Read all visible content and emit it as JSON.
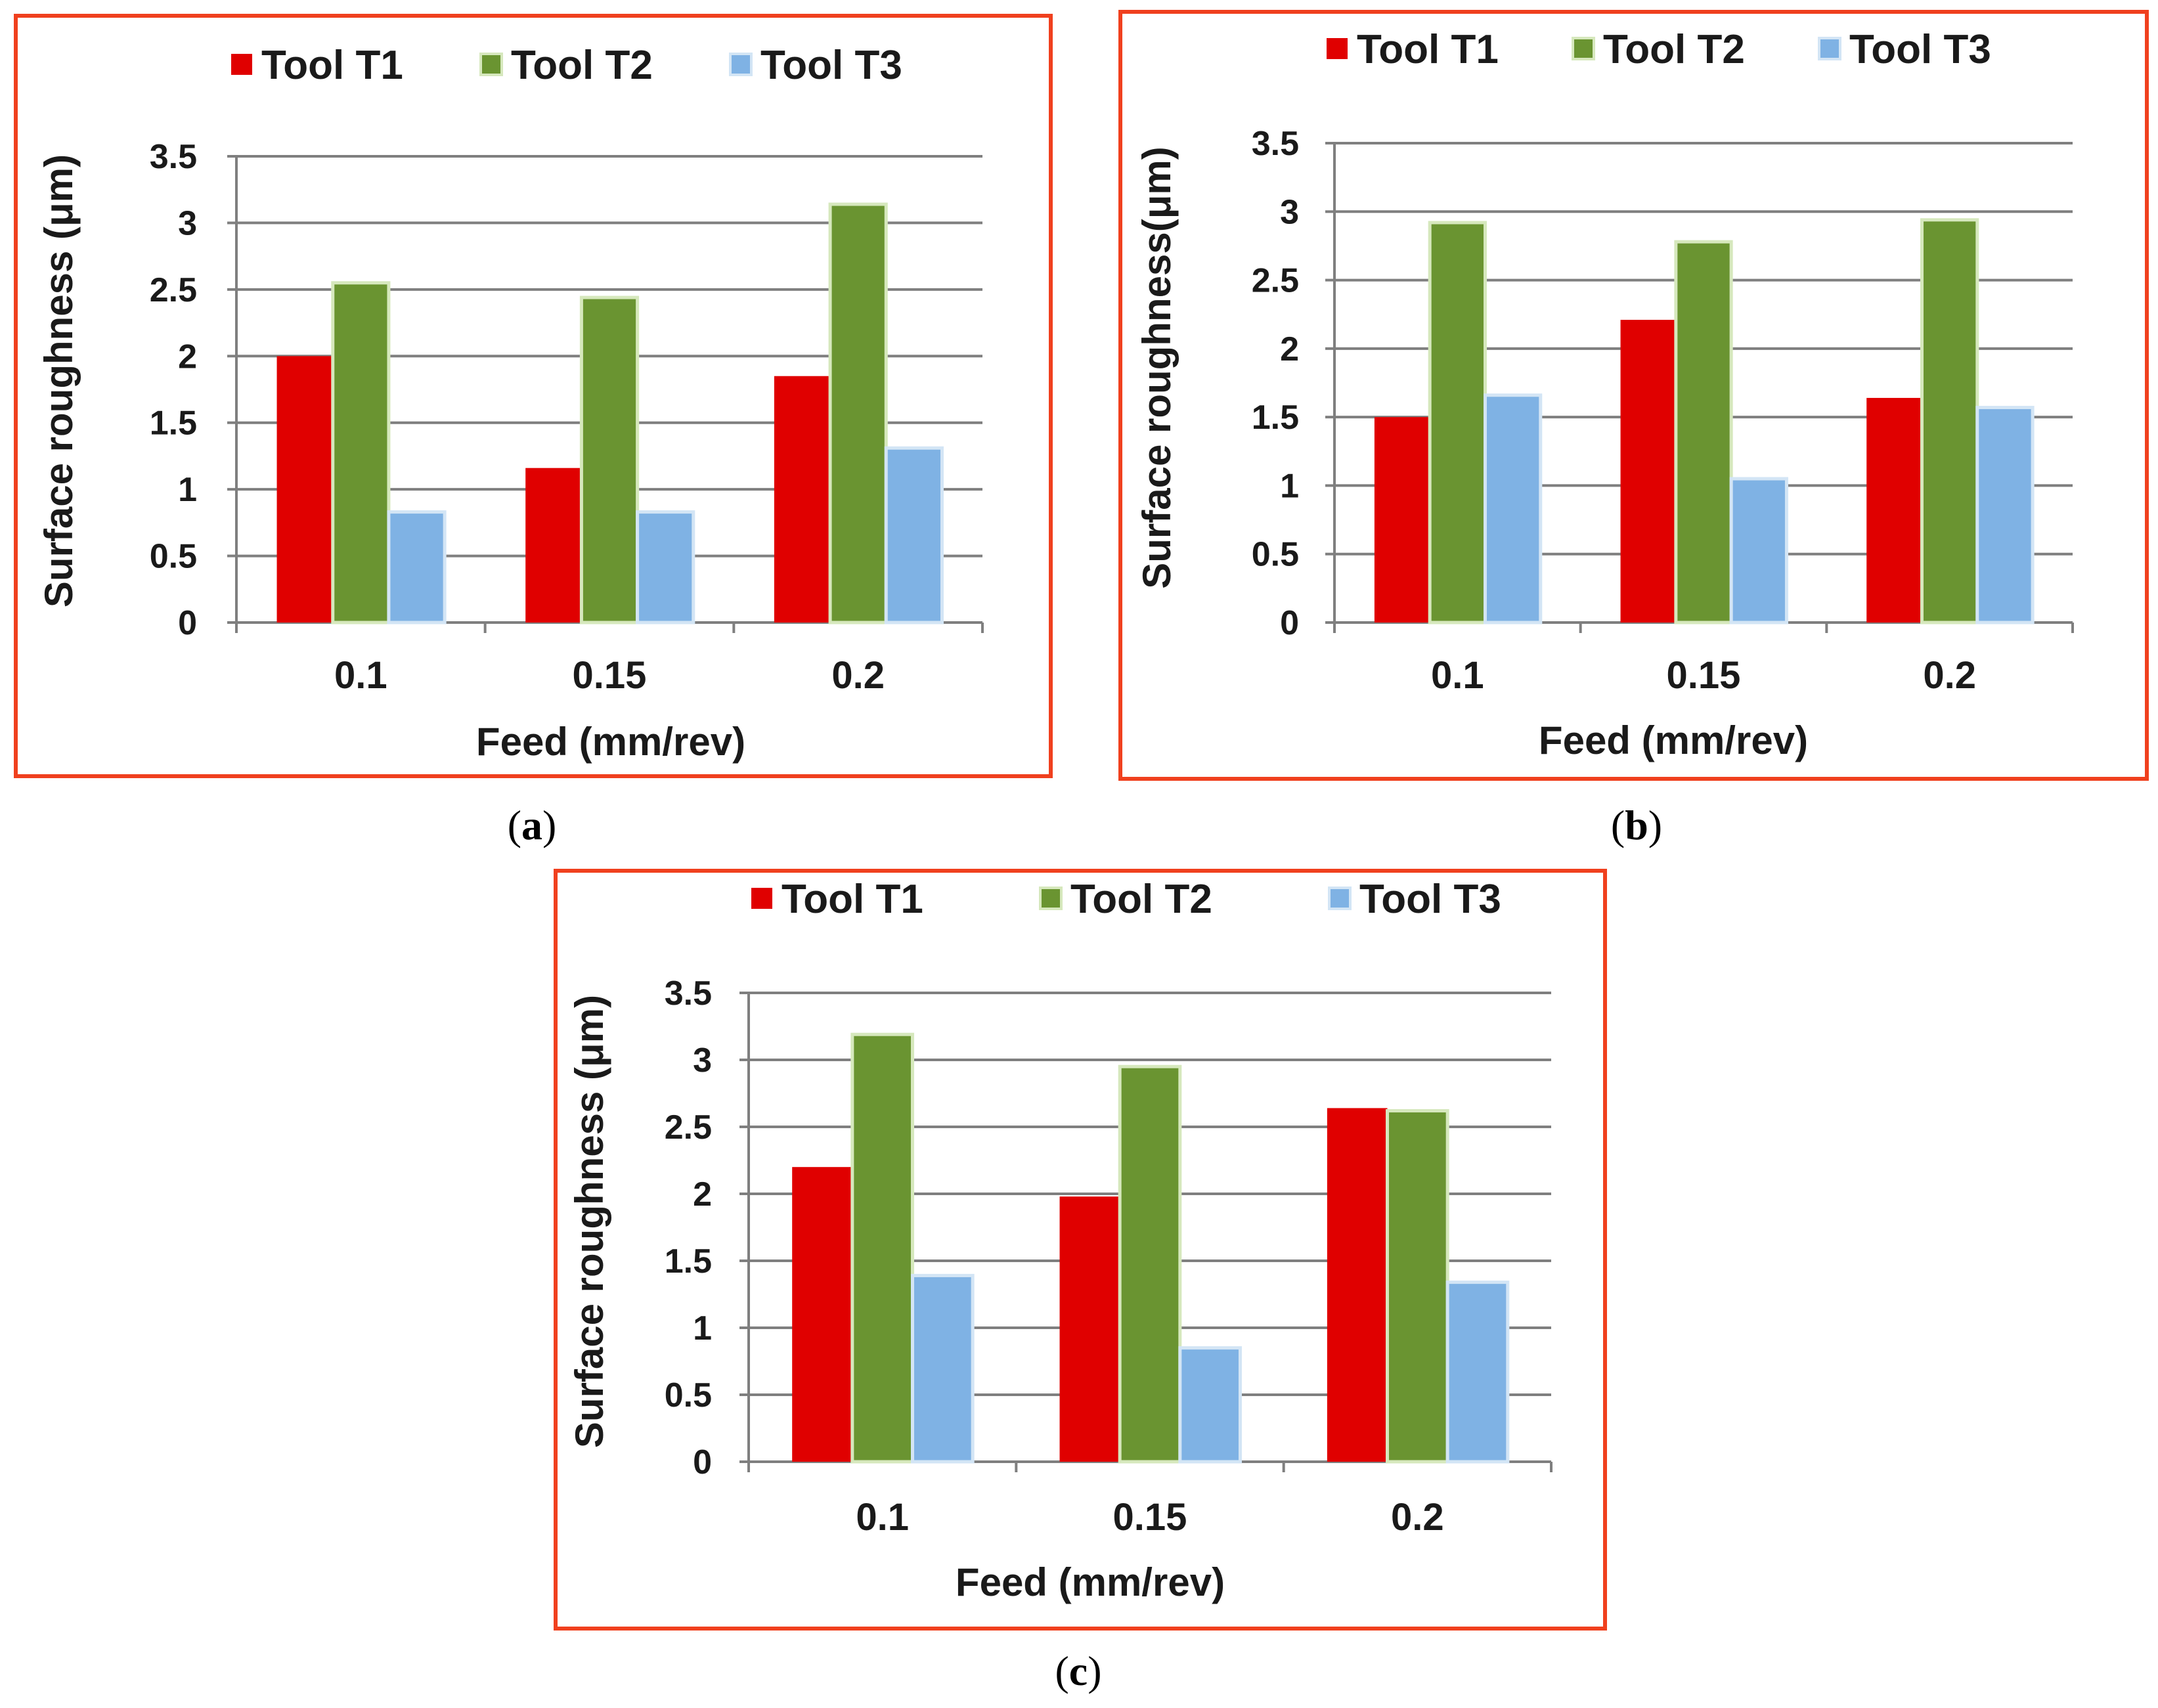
{
  "chart_data": [
    {
      "panel": "a",
      "caption": "a",
      "type": "bar",
      "categories": [
        "0.1",
        "0.15",
        "0.2"
      ],
      "series": [
        {
          "name": "Tool T1",
          "values": [
            2.0,
            1.16,
            1.85
          ]
        },
        {
          "name": "Tool T2",
          "values": [
            2.55,
            2.44,
            3.14
          ]
        },
        {
          "name": "Tool T3",
          "values": [
            0.83,
            0.83,
            1.31
          ]
        }
      ],
      "xlabel": "Feed (mm/rev)",
      "ylabel": "Surface roughness (μm)",
      "ylim": [
        0,
        3.5
      ],
      "yticks": [
        "0",
        "0.5",
        "1",
        "1.5",
        "2",
        "2.5",
        "3",
        "3.5"
      ],
      "grid": true,
      "legend_position": "top"
    },
    {
      "panel": "b",
      "caption": "b",
      "type": "bar",
      "categories": [
        "0.1",
        "0.15",
        "0.2"
      ],
      "series": [
        {
          "name": "Tool T1",
          "values": [
            1.5,
            2.21,
            1.64
          ]
        },
        {
          "name": "Tool T2",
          "values": [
            2.92,
            2.78,
            2.94
          ]
        },
        {
          "name": "Tool T3",
          "values": [
            1.66,
            1.05,
            1.57
          ]
        }
      ],
      "xlabel": "Feed (mm/rev)",
      "ylabel": "Surface roughness(μm)",
      "ylim": [
        0,
        3.5
      ],
      "yticks": [
        "0",
        "0.5",
        "1",
        "1.5",
        "2",
        "2.5",
        "3",
        "3.5"
      ],
      "grid": true,
      "legend_position": "top"
    },
    {
      "panel": "c",
      "caption": "c",
      "type": "bar",
      "categories": [
        "0.1",
        "0.15",
        "0.2"
      ],
      "series": [
        {
          "name": "Tool T1",
          "values": [
            2.2,
            1.98,
            2.64
          ]
        },
        {
          "name": "Tool T2",
          "values": [
            3.19,
            2.95,
            2.62
          ]
        },
        {
          "name": "Tool T3",
          "values": [
            1.39,
            0.85,
            1.34
          ]
        }
      ],
      "xlabel": "Feed (mm/rev)",
      "ylabel": "Surface roughness (μm)",
      "ylim": [
        0,
        3.5
      ],
      "yticks": [
        "0",
        "0.5",
        "1",
        "1.5",
        "2",
        "2.5",
        "3",
        "3.5"
      ],
      "grid": true,
      "legend_position": "top"
    }
  ],
  "colors": {
    "Tool T1": "#e00000",
    "Tool T2": "#6a9431",
    "Tool T3": "#7fb2e4",
    "frame": "#f0401e"
  }
}
